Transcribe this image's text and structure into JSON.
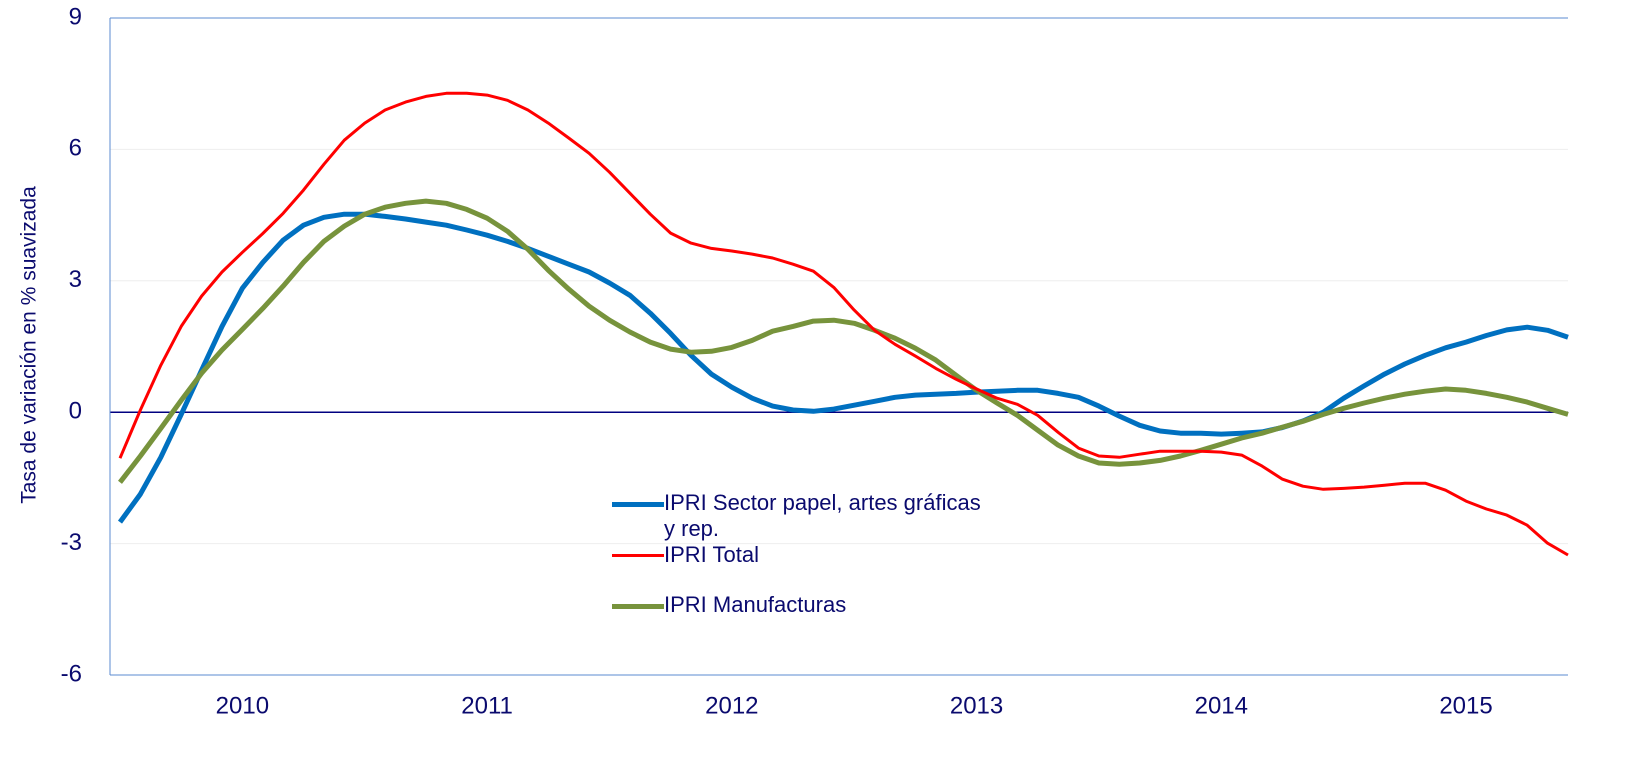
{
  "chart_data": {
    "type": "line",
    "y_label": "Tasa de variación en % suavizada",
    "categories": [
      null,
      null,
      null,
      null,
      null,
      null,
      "2010",
      null,
      null,
      null,
      null,
      null,
      null,
      null,
      null,
      null,
      null,
      null,
      "2011",
      null,
      null,
      null,
      null,
      null,
      null,
      null,
      null,
      null,
      null,
      null,
      "2012",
      null,
      null,
      null,
      null,
      null,
      null,
      null,
      null,
      null,
      null,
      null,
      "2013",
      null,
      null,
      null,
      null,
      null,
      null,
      null,
      null,
      null,
      null,
      null,
      "2014",
      null,
      null,
      null,
      null,
      null,
      null,
      null,
      null,
      null,
      null,
      null,
      "2015",
      null,
      null,
      null,
      null,
      null
    ],
    "ylim": [
      -6,
      9
    ],
    "yticks": [
      9,
      6,
      3,
      0,
      -3,
      -6
    ],
    "grid": true,
    "series": [
      {
        "name": "IPRI Sector papel, artes gráficas y rep.",
        "color": "#0070c0",
        "width": 5,
        "values": [
          -2.51,
          -1.87,
          -1.03,
          -0.05,
          0.96,
          1.96,
          2.83,
          3.42,
          3.93,
          4.27,
          4.45,
          4.52,
          4.52,
          4.47,
          4.41,
          4.34,
          4.27,
          4.16,
          4.04,
          3.9,
          3.74,
          3.56,
          3.38,
          3.2,
          2.95,
          2.67,
          2.26,
          1.8,
          1.3,
          0.87,
          0.57,
          0.32,
          0.14,
          0.05,
          0.02,
          0.07,
          0.16,
          0.25,
          0.34,
          0.39,
          0.41,
          0.43,
          0.46,
          0.48,
          0.5,
          0.5,
          0.43,
          0.34,
          0.14,
          -0.09,
          -0.3,
          -0.43,
          -0.48,
          -0.48,
          -0.5,
          -0.48,
          -0.45,
          -0.35,
          -0.2,
          0.0,
          0.32,
          0.6,
          0.87,
          1.1,
          1.3,
          1.47,
          1.6,
          1.75,
          1.88,
          1.94,
          1.87,
          1.71
        ]
      },
      {
        "name": "IPRI Total",
        "color": "#ff0000",
        "width": 3,
        "values": [
          -1.05,
          0.05,
          1.07,
          1.96,
          2.65,
          3.2,
          3.65,
          4.08,
          4.54,
          5.07,
          5.66,
          6.21,
          6.6,
          6.9,
          7.08,
          7.21,
          7.28,
          7.28,
          7.24,
          7.12,
          6.9,
          6.6,
          6.26,
          5.91,
          5.48,
          5.0,
          4.52,
          4.09,
          3.86,
          3.74,
          3.68,
          3.61,
          3.52,
          3.38,
          3.22,
          2.85,
          2.33,
          1.87,
          1.55,
          1.28,
          1.0,
          0.75,
          0.53,
          0.32,
          0.18,
          -0.07,
          -0.46,
          -0.82,
          -1.0,
          -1.03,
          -0.96,
          -0.89,
          -0.89,
          -0.89,
          -0.91,
          -0.98,
          -1.23,
          -1.53,
          -1.69,
          -1.76,
          -1.74,
          -1.71,
          -1.67,
          -1.62,
          -1.62,
          -1.78,
          -2.03,
          -2.21,
          -2.35,
          -2.58,
          -2.99,
          -3.26
        ]
      },
      {
        "name": "IPRI Manufacturas",
        "color": "#77933c",
        "width": 5,
        "values": [
          -1.6,
          -1.0,
          -0.37,
          0.27,
          0.89,
          1.42,
          1.89,
          2.37,
          2.88,
          3.42,
          3.9,
          4.25,
          4.52,
          4.68,
          4.77,
          4.82,
          4.77,
          4.63,
          4.43,
          4.13,
          3.72,
          3.24,
          2.81,
          2.42,
          2.1,
          1.83,
          1.6,
          1.44,
          1.37,
          1.39,
          1.48,
          1.64,
          1.85,
          1.96,
          2.08,
          2.1,
          2.03,
          1.87,
          1.69,
          1.46,
          1.19,
          0.84,
          0.5,
          0.21,
          -0.07,
          -0.41,
          -0.75,
          -1.0,
          -1.16,
          -1.19,
          -1.16,
          -1.1,
          -1.0,
          -0.87,
          -0.73,
          -0.59,
          -0.48,
          -0.34,
          -0.21,
          -0.05,
          0.09,
          0.21,
          0.32,
          0.41,
          0.48,
          0.53,
          0.5,
          0.43,
          0.34,
          0.23,
          0.09,
          -0.05
        ]
      }
    ]
  }
}
